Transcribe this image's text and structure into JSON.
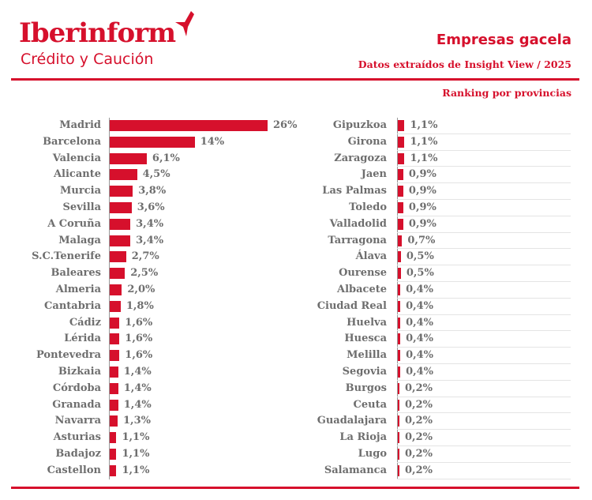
{
  "header": {
    "logo_text": "Iberinform",
    "logo_sub": "Crédito y Caución",
    "title": "Empresas gacela",
    "subtitle": "Datos extraídos de Insight View / 2025",
    "ranking_label": "Ranking por provincias"
  },
  "colors": {
    "accent": "#d6102c",
    "label": "#6e6e6e"
  },
  "chart_data": [
    {
      "type": "bar",
      "orientation": "horizontal",
      "title": "",
      "unit": "%",
      "categories": [
        "Madrid",
        "Barcelona",
        "Valencia",
        "Alicante",
        "Murcia",
        "Sevilla",
        "A Coruña",
        "Malaga",
        "S.C.Tenerife",
        "Baleares",
        "Almeria",
        "Cantabria",
        "Cádiz",
        "Lérida",
        "Pontevedra",
        "Bizkaia",
        "Córdoba",
        "Granada",
        "Navarra",
        "Asturias",
        "Badajoz",
        "Castellon"
      ],
      "values": [
        26,
        14,
        6.1,
        4.5,
        3.8,
        3.6,
        3.4,
        3.4,
        2.7,
        2.5,
        2.0,
        1.8,
        1.6,
        1.6,
        1.6,
        1.4,
        1.4,
        1.4,
        1.3,
        1.1,
        1.1,
        1.1
      ],
      "labels": [
        "26%",
        "14%",
        "6,1%",
        "4,5%",
        "3,8%",
        "3,6%",
        "3,4%",
        "3,4%",
        "2,7%",
        "2,5%",
        "2,0%",
        "1,8%",
        "1,6%",
        "1,6%",
        "1,6%",
        "1,4%",
        "1,4%",
        "1,4%",
        "1,3%",
        "1,1%",
        "1,1%",
        "1,1%"
      ]
    },
    {
      "type": "bar",
      "orientation": "horizontal",
      "title": "",
      "unit": "%",
      "categories": [
        "Gipuzkoa",
        "Girona",
        "Zaragoza",
        "Jaen",
        "Las Palmas",
        "Toledo",
        "Valladolid",
        "Tarragona",
        "Álava",
        "Ourense",
        "Albacete",
        "Ciudad Real",
        "Huelva",
        "Huesca",
        "Melilla",
        "Segovia",
        "Burgos",
        "Ceuta",
        "Guadalajara",
        "La Rioja",
        "Lugo",
        "Salamanca"
      ],
      "values": [
        1.1,
        1.1,
        1.1,
        0.9,
        0.9,
        0.9,
        0.9,
        0.7,
        0.5,
        0.5,
        0.4,
        0.4,
        0.4,
        0.4,
        0.4,
        0.4,
        0.2,
        0.2,
        0.2,
        0.2,
        0.2,
        0.2
      ],
      "labels": [
        "1,1%",
        "1,1%",
        "1,1%",
        "0,9%",
        "0,9%",
        "0,9%",
        "0,9%",
        "0,7%",
        "0,5%",
        "0,5%",
        "0,4%",
        "0,4%",
        "0,4%",
        "0,4%",
        "0,4%",
        "0,4%",
        "0,2%",
        "0,2%",
        "0,2%",
        "0,2%",
        "0,2%",
        "0,2%"
      ]
    }
  ]
}
